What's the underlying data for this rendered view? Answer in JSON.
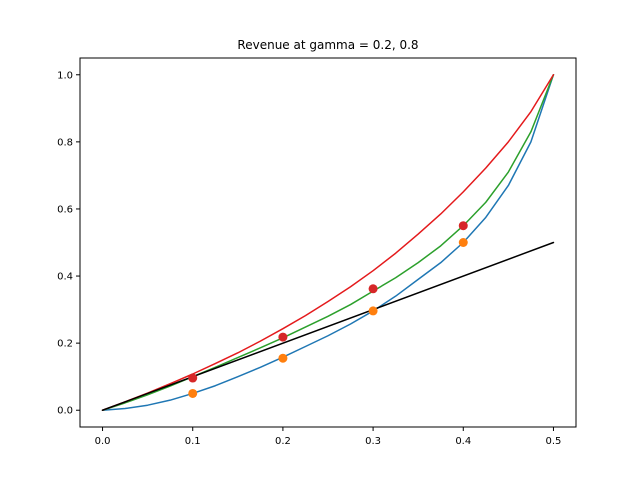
{
  "chart_data": {
    "type": "line",
    "title": "Revenue at gamma = 0.2, 0.8",
    "xlabel": "",
    "ylabel": "",
    "xlim": [
      -0.025,
      0.525
    ],
    "ylim": [
      -0.05,
      1.05
    ],
    "x_ticks": [
      0.0,
      0.1,
      0.2,
      0.3,
      0.4,
      0.5
    ],
    "x_tick_labels": [
      "0.0",
      "0.1",
      "0.2",
      "0.3",
      "0.4",
      "0.5"
    ],
    "y_ticks": [
      0.0,
      0.2,
      0.4,
      0.6,
      0.8,
      1.0
    ],
    "y_tick_labels": [
      "0.0",
      "0.2",
      "0.4",
      "0.6",
      "0.8",
      "1.0"
    ],
    "grid": false,
    "legend": "none",
    "series": [
      {
        "kind": "line",
        "color": "#1f77b4",
        "x": [
          0.0,
          0.025,
          0.05,
          0.075,
          0.1,
          0.125,
          0.15,
          0.175,
          0.2,
          0.225,
          0.25,
          0.275,
          0.3,
          0.325,
          0.35,
          0.375,
          0.4,
          0.425,
          0.45,
          0.475,
          0.5
        ],
        "y": [
          0.0,
          0.005,
          0.015,
          0.03,
          0.05,
          0.073,
          0.1,
          0.128,
          0.158,
          0.19,
          0.222,
          0.257,
          0.296,
          0.34,
          0.39,
          0.44,
          0.5,
          0.575,
          0.67,
          0.8,
          1.0
        ]
      },
      {
        "kind": "line",
        "color": "#2ca02c",
        "x": [
          0.0,
          0.025,
          0.05,
          0.075,
          0.1,
          0.125,
          0.15,
          0.175,
          0.2,
          0.225,
          0.25,
          0.275,
          0.3,
          0.325,
          0.35,
          0.375,
          0.4,
          0.425,
          0.45,
          0.475,
          0.5
        ],
        "y": [
          0.0,
          0.022,
          0.046,
          0.072,
          0.1,
          0.128,
          0.157,
          0.186,
          0.216,
          0.248,
          0.28,
          0.315,
          0.355,
          0.395,
          0.44,
          0.49,
          0.55,
          0.62,
          0.71,
          0.83,
          1.0
        ]
      },
      {
        "kind": "line",
        "color": "#e41a1c",
        "x": [
          0.0,
          0.025,
          0.05,
          0.075,
          0.1,
          0.125,
          0.15,
          0.175,
          0.2,
          0.225,
          0.25,
          0.275,
          0.3,
          0.325,
          0.35,
          0.375,
          0.4,
          0.425,
          0.45,
          0.475,
          0.5
        ],
        "y": [
          0.0,
          0.025,
          0.051,
          0.079,
          0.108,
          0.139,
          0.171,
          0.206,
          0.243,
          0.282,
          0.324,
          0.368,
          0.416,
          0.468,
          0.525,
          0.585,
          0.651,
          0.722,
          0.8,
          0.89,
          1.0
        ]
      },
      {
        "kind": "line",
        "color": "#000000",
        "x": [
          0.0,
          0.5
        ],
        "y": [
          0.0,
          0.5
        ]
      },
      {
        "kind": "scatter",
        "color": "#ff7f0e",
        "x": [
          0.1,
          0.2,
          0.3,
          0.4
        ],
        "y": [
          0.05,
          0.155,
          0.296,
          0.5
        ]
      },
      {
        "kind": "scatter",
        "color": "#d62728",
        "x": [
          0.1,
          0.2,
          0.3,
          0.4
        ],
        "y": [
          0.096,
          0.218,
          0.362,
          0.55
        ]
      }
    ]
  }
}
